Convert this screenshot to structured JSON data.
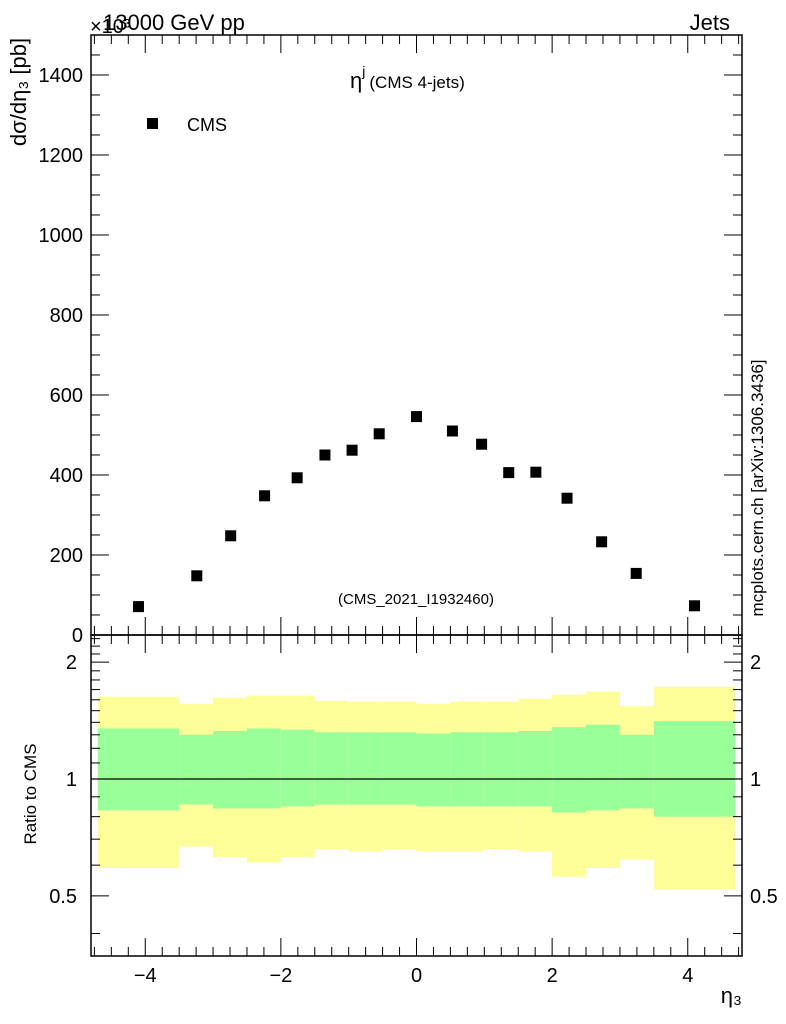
{
  "header": {
    "energy": "13000 GeV pp",
    "process": "Jets",
    "exponent": "×10³",
    "side_label": "mcplots.cern.ch [arXiv:1306.3436]"
  },
  "colors": {
    "band_outer": "#ffff99",
    "band_inner": "#99ff99",
    "marker": "#000000",
    "watermark": "#808080"
  },
  "chart_data": [
    {
      "type": "scatter",
      "title_symbol": "η",
      "title_super": "j",
      "title_note": "(CMS 4-jets)",
      "ylabel": "dσ/dη₃ [pb]",
      "xlabel": "η₃",
      "legend": {
        "entries": [
          "CMS"
        ],
        "position": "top-left"
      },
      "watermark": "(CMS_2021_I1932460)",
      "xlim": [
        -4.8,
        4.8
      ],
      "ylim": [
        0,
        1500
      ],
      "y_ticks": [
        0,
        200,
        400,
        600,
        800,
        1000,
        1200,
        1400
      ],
      "y_tick_labels": [
        "0",
        "200",
        "400",
        "600",
        "800",
        "1000",
        "1200",
        "1400"
      ],
      "x_ticks": [
        -4,
        -2,
        0,
        2,
        4
      ],
      "series": [
        {
          "name": "CMS",
          "x": [
            -4.1,
            -3.24,
            -2.74,
            -2.24,
            -1.76,
            -1.35,
            -0.95,
            -0.55,
            0.0,
            0.53,
            0.96,
            1.36,
            1.76,
            2.22,
            2.73,
            3.24,
            4.1
          ],
          "values": [
            71,
            148,
            248,
            348,
            393,
            450,
            462,
            503,
            546,
            510,
            477,
            406,
            407,
            342,
            233,
            154,
            73
          ]
        }
      ]
    },
    {
      "type": "area",
      "ylabel": "Ratio to CMS",
      "xlabel": "η₃",
      "xlim": [
        -4.8,
        4.8
      ],
      "ylim": [
        0.35,
        2.35
      ],
      "y_ticks": [
        0.5,
        1,
        2
      ],
      "y_tick_labels": [
        "0.5",
        "1",
        "2"
      ],
      "x_ticks": [
        -4,
        -2,
        0,
        2,
        4
      ],
      "x_tick_labels": [
        "−4",
        "−2",
        "0",
        "2",
        "4"
      ],
      "reference": 1,
      "bins": [
        {
          "x0": -4.7,
          "x1": -3.5,
          "outer_lo": 0.59,
          "outer_hi": 1.63,
          "inner_lo": 0.83,
          "inner_hi": 1.35
        },
        {
          "x0": -3.5,
          "x1": -3.0,
          "outer_lo": 0.67,
          "outer_hi": 1.56,
          "inner_lo": 0.86,
          "inner_hi": 1.3
        },
        {
          "x0": -3.0,
          "x1": -2.5,
          "outer_lo": 0.63,
          "outer_hi": 1.62,
          "inner_lo": 0.84,
          "inner_hi": 1.33
        },
        {
          "x0": -2.5,
          "x1": -2.0,
          "outer_lo": 0.61,
          "outer_hi": 1.64,
          "inner_lo": 0.84,
          "inner_hi": 1.35
        },
        {
          "x0": -2.0,
          "x1": -1.5,
          "outer_lo": 0.63,
          "outer_hi": 1.64,
          "inner_lo": 0.85,
          "inner_hi": 1.34
        },
        {
          "x0": -1.5,
          "x1": -1.0,
          "outer_lo": 0.66,
          "outer_hi": 1.59,
          "inner_lo": 0.86,
          "inner_hi": 1.32
        },
        {
          "x0": -1.0,
          "x1": -0.5,
          "outer_lo": 0.65,
          "outer_hi": 1.58,
          "inner_lo": 0.86,
          "inner_hi": 1.32
        },
        {
          "x0": -0.5,
          "x1": 0.0,
          "outer_lo": 0.66,
          "outer_hi": 1.58,
          "inner_lo": 0.86,
          "inner_hi": 1.32
        },
        {
          "x0": 0.0,
          "x1": 0.5,
          "outer_lo": 0.65,
          "outer_hi": 1.56,
          "inner_lo": 0.85,
          "inner_hi": 1.31
        },
        {
          "x0": 0.5,
          "x1": 1.0,
          "outer_lo": 0.65,
          "outer_hi": 1.58,
          "inner_lo": 0.85,
          "inner_hi": 1.32
        },
        {
          "x0": 1.0,
          "x1": 1.5,
          "outer_lo": 0.66,
          "outer_hi": 1.58,
          "inner_lo": 0.85,
          "inner_hi": 1.32
        },
        {
          "x0": 1.5,
          "x1": 2.0,
          "outer_lo": 0.65,
          "outer_hi": 1.61,
          "inner_lo": 0.85,
          "inner_hi": 1.33
        },
        {
          "x0": 2.0,
          "x1": 2.5,
          "outer_lo": 0.56,
          "outer_hi": 1.65,
          "inner_lo": 0.82,
          "inner_hi": 1.36
        },
        {
          "x0": 2.5,
          "x1": 3.0,
          "outer_lo": 0.59,
          "outer_hi": 1.68,
          "inner_lo": 0.83,
          "inner_hi": 1.38
        },
        {
          "x0": 3.0,
          "x1": 3.5,
          "outer_lo": 0.62,
          "outer_hi": 1.54,
          "inner_lo": 0.84,
          "inner_hi": 1.3
        },
        {
          "x0": 3.5,
          "x1": 4.7,
          "outer_lo": 0.52,
          "outer_hi": 1.73,
          "inner_lo": 0.8,
          "inner_hi": 1.41
        }
      ]
    }
  ]
}
